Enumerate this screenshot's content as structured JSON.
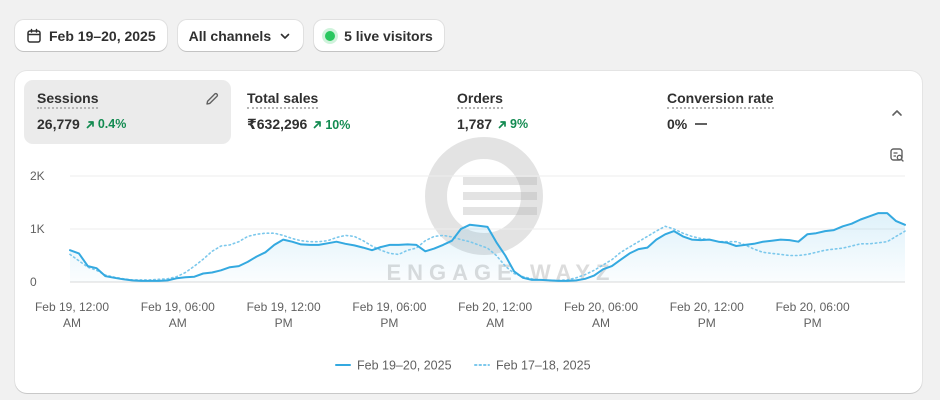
{
  "toolbar": {
    "date_range": "Feb 19–20, 2025",
    "channels": "All channels",
    "live_visitors": "5 live visitors"
  },
  "metrics": [
    {
      "label": "Sessions",
      "value": "26,779",
      "delta": "0.4%",
      "trend": "up",
      "active": true
    },
    {
      "label": "Total sales",
      "value": "₹632,296",
      "delta": "10%",
      "trend": "up"
    },
    {
      "label": "Orders",
      "value": "1,787",
      "delta": "9%",
      "trend": "up"
    },
    {
      "label": "Conversion rate",
      "value": "0%",
      "delta": "",
      "trend": "flat"
    }
  ],
  "icons": {
    "calendar": "calendar-icon",
    "channels_chevron": "chevron-down-icon",
    "live": "live-dot-icon",
    "edit": "pencil-icon",
    "collapse": "chevron-up-icon",
    "explore": "chart-explore-icon"
  },
  "watermark": "ENGAGE WAYZ",
  "colors": {
    "current_series": "#34a9e0",
    "comparison_series": "#7cc8ec",
    "positive": "#138b51",
    "live": "#29c75f"
  },
  "chart_data": {
    "type": "line",
    "x_labels": [
      [
        "Feb 19, 12:00",
        "AM"
      ],
      [
        "Feb 19, 06:00",
        "AM"
      ],
      [
        "Feb 19, 12:00",
        "PM"
      ],
      [
        "Feb 19, 06:00",
        "PM"
      ],
      [
        "Feb 20, 12:00",
        "AM"
      ],
      [
        "Feb 20, 06:00",
        "AM"
      ],
      [
        "Feb 20, 12:00",
        "PM"
      ],
      [
        "Feb 20, 06:00",
        "PM"
      ]
    ],
    "y_ticks": [
      {
        "value": 0,
        "label": "0"
      },
      {
        "value": 1000,
        "label": "1K"
      },
      {
        "value": 2000,
        "label": "2K"
      }
    ],
    "ylim": [
      0,
      2000
    ],
    "x_hours_range": [
      0,
      47
    ],
    "grid": true,
    "legend_position": "bottom-center",
    "series": [
      {
        "name": "Feb 19–20, 2025",
        "style": "solid",
        "x": [
          0,
          0.5,
          1,
          1.5,
          2,
          2.5,
          3,
          3.5,
          4,
          4.5,
          5,
          5.5,
          6,
          6.5,
          7,
          7.5,
          8,
          8.5,
          9,
          9.5,
          10,
          10.5,
          11,
          11.5,
          12,
          12.5,
          13,
          13.5,
          14,
          14.5,
          15,
          15.5,
          16,
          16.5,
          17,
          17.5,
          18,
          18.5,
          19,
          19.5,
          20,
          20.5,
          21,
          21.5,
          22,
          22.5,
          23,
          23.5,
          24,
          24.5,
          25,
          25.5,
          26,
          26.5,
          27,
          27.5,
          28,
          28.5,
          29,
          29.5,
          30,
          30.5,
          31,
          31.5,
          32,
          32.5,
          33,
          33.5,
          34,
          34.5,
          35,
          35.5,
          36,
          36.5,
          37,
          37.5,
          38,
          38.5,
          39,
          39.5,
          40,
          40.5,
          41,
          41.5,
          42,
          42.5,
          43,
          43.5,
          44,
          44.5,
          45,
          45.5,
          46,
          46.5,
          47
        ],
        "values": [
          600,
          540,
          300,
          260,
          110,
          80,
          50,
          30,
          20,
          20,
          20,
          30,
          70,
          90,
          100,
          160,
          180,
          220,
          280,
          300,
          380,
          480,
          560,
          700,
          800,
          760,
          710,
          700,
          700,
          730,
          760,
          720,
          690,
          650,
          600,
          660,
          700,
          700,
          710,
          700,
          580,
          630,
          700,
          780,
          1000,
          1080,
          1060,
          1040,
          750,
          500,
          200,
          80,
          40,
          40,
          30,
          20,
          20,
          30,
          60,
          120,
          240,
          300,
          420,
          540,
          620,
          650,
          800,
          900,
          960,
          860,
          800,
          790,
          800,
          760,
          740,
          680,
          700,
          720,
          760,
          780,
          800,
          790,
          760,
          900,
          920,
          960,
          980,
          1050,
          1100,
          1180,
          1240,
          1300,
          1300,
          1150,
          1080
        ]
      },
      {
        "name": "Feb 17–18, 2025",
        "style": "dotted",
        "x": [
          0,
          0.5,
          1,
          1.5,
          2,
          2.5,
          3,
          3.5,
          4,
          4.5,
          5,
          5.5,
          6,
          6.5,
          7,
          7.5,
          8,
          8.5,
          9,
          9.5,
          10,
          10.5,
          11,
          11.5,
          12,
          12.5,
          13,
          13.5,
          14,
          14.5,
          15,
          15.5,
          16,
          16.5,
          17,
          17.5,
          18,
          18.5,
          19,
          19.5,
          20,
          20.5,
          21,
          21.5,
          22,
          22.5,
          23,
          23.5,
          24,
          24.5,
          25,
          25.5,
          26,
          26.5,
          27,
          27.5,
          28,
          28.5,
          29,
          29.5,
          30,
          30.5,
          31,
          31.5,
          32,
          32.5,
          33,
          33.5,
          34,
          34.5,
          35,
          35.5,
          36,
          36.5,
          37,
          37.5,
          38,
          38.5,
          39,
          39.5,
          40,
          40.5,
          41,
          41.5,
          42,
          42.5,
          43,
          43.5,
          44,
          44.5,
          45,
          45.5,
          46,
          46.5,
          47
        ],
        "values": [
          520,
          400,
          280,
          220,
          130,
          90,
          60,
          40,
          40,
          40,
          50,
          60,
          100,
          180,
          300,
          430,
          580,
          680,
          700,
          760,
          860,
          900,
          920,
          920,
          880,
          820,
          780,
          760,
          760,
          780,
          840,
          880,
          860,
          780,
          680,
          600,
          540,
          520,
          600,
          640,
          780,
          860,
          880,
          850,
          800,
          760,
          700,
          640,
          500,
          300,
          160,
          100,
          60,
          40,
          30,
          30,
          40,
          80,
          140,
          220,
          320,
          420,
          560,
          660,
          760,
          860,
          960,
          1050,
          1000,
          920,
          860,
          820,
          800,
          760,
          760,
          760,
          700,
          620,
          560,
          540,
          520,
          500,
          500,
          520,
          560,
          600,
          620,
          640,
          680,
          720,
          720,
          740,
          760,
          860,
          960
        ]
      }
    ]
  }
}
